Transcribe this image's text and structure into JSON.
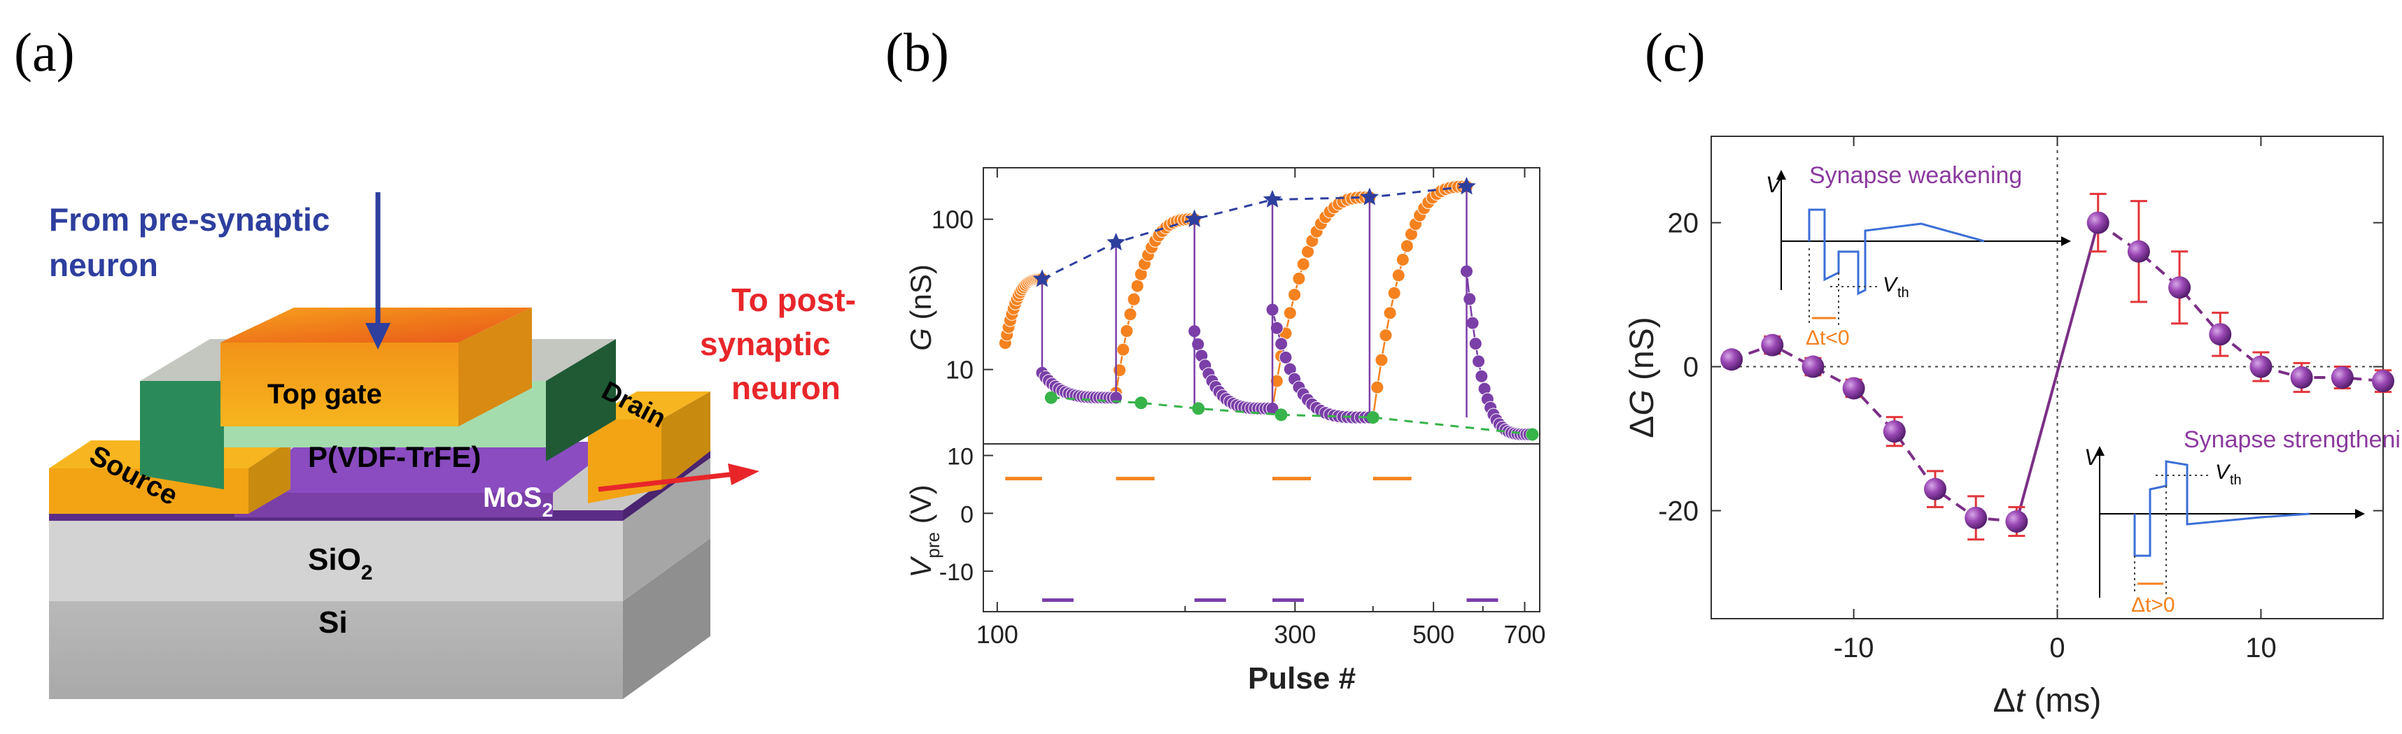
{
  "panels": {
    "a": "(a)",
    "b": "(b)",
    "c": "(c)"
  },
  "device": {
    "from_label_1": "From pre-synaptic",
    "from_label_2": "neuron",
    "to_label_1": "To post-",
    "to_label_2": "synaptic",
    "to_label_3": "neuron",
    "top_gate": "Top gate",
    "source": "Source",
    "drain": "Drain",
    "ferroelectric": "P(VDF-TrFE)",
    "channel": "MoS",
    "channel_sub": "2",
    "oxide": "SiO",
    "oxide_sub": "2",
    "substrate": "Si",
    "colors": {
      "arrow_in": "#2e3f9e",
      "arrow_out": "#e8262a",
      "gate": "#f59a1e",
      "mos2": "#7b3fa8"
    }
  },
  "chart_data": [
    {
      "type": "scatter",
      "panel": "b",
      "title": "",
      "xlabel": "Pulse #",
      "ylabel": "G (nS)",
      "ylabel_italic": "G",
      "ylabel_unit": " (nS)",
      "xscale": "log",
      "yscale": "log",
      "xlim": [
        95,
        740
      ],
      "ylim": [
        3.2,
        220
      ],
      "xticks": [
        100,
        300,
        500,
        700
      ],
      "xtick_labels": [
        "100",
        "300",
        "500",
        "700"
      ],
      "yticks": [
        10,
        100
      ],
      "ytick_labels": [
        "10",
        "100"
      ],
      "cycle_bounds": [
        [
          103,
          118
        ],
        [
          118,
          155
        ],
        [
          155,
          207
        ],
        [
          207,
          276
        ],
        [
          276,
          395
        ],
        [
          395,
          565
        ],
        [
          565,
          720
        ]
      ],
      "series": [
        {
          "name": "potentiation",
          "color": "#f5821f",
          "segments": [
            {
              "x0": 103,
              "x1": 118,
              "g0": 15,
              "g1": 40
            },
            {
              "x0": 155,
              "x1": 207,
              "g0": 7,
              "g1": 100
            },
            {
              "x0": 276,
              "x1": 395,
              "g0": 5.5,
              "g1": 140
            },
            {
              "x0": 400,
              "x1": 565,
              "g0": 4.8,
              "g1": 165
            }
          ]
        },
        {
          "name": "depression",
          "color": "#7b3fa8",
          "segments": [
            {
              "x0": 118,
              "x1": 155,
              "g0": 9.5,
              "g1": 6.5
            },
            {
              "x0": 207,
              "x1": 276,
              "g0": 18,
              "g1": 5.5
            },
            {
              "x0": 276,
              "x1": 395,
              "g0": 25,
              "g1": 4.8
            },
            {
              "x0": 565,
              "x1": 720,
              "g0": 45,
              "g1": 3.7
            }
          ]
        },
        {
          "name": "max envelope",
          "color": "#2e3f9e",
          "x": [
            118,
            155,
            207,
            276,
            395,
            565
          ],
          "y": [
            40,
            70,
            100,
            135,
            140,
            165
          ]
        },
        {
          "name": "min envelope",
          "color": "#37b34a",
          "x": [
            122,
            170,
            210,
            285,
            400,
            720
          ],
          "y": [
            6.5,
            6.0,
            5.5,
            5.0,
            4.8,
            3.7
          ]
        }
      ]
    },
    {
      "type": "line",
      "panel": "b-lower",
      "ylabel": "V",
      "ylabel_sub": "pre",
      "ylabel_unit": " (V)",
      "ylim": [
        -17,
        12
      ],
      "yticks": [
        10,
        0,
        -10
      ],
      "ytick_labels": [
        "10",
        "0",
        "-10"
      ],
      "series": [
        {
          "name": "positive pulses",
          "color": "#f5821f",
          "level": 6,
          "x_ranges": [
            [
              103,
              118
            ],
            [
              155,
              207
            ],
            [
              276,
              395
            ],
            [
              400,
              565
            ]
          ]
        },
        {
          "name": "negative pulses",
          "color": "#7b3fa8",
          "level": -15,
          "x_ranges": [
            [
              118,
              155
            ],
            [
              207,
              276
            ],
            [
              276,
              395
            ],
            [
              565,
              720
            ]
          ]
        }
      ]
    },
    {
      "type": "scatter",
      "panel": "c",
      "xlabel": "Δt (ms)",
      "xlabel_delta": "Δ",
      "xlabel_italic": "t",
      "xlabel_unit": " (ms)",
      "ylabel": "ΔG (nS)",
      "ylabel_delta": "Δ",
      "ylabel_italic": "G",
      "ylabel_unit": " (nS)",
      "xlim": [
        -17,
        16
      ],
      "ylim": [
        -35,
        32
      ],
      "xticks": [
        -10,
        0,
        10
      ],
      "xtick_labels": [
        "-10",
        "0",
        "10"
      ],
      "yticks": [
        20,
        0,
        -20
      ],
      "ytick_labels": [
        "20",
        "0",
        "-20"
      ],
      "series": [
        {
          "name": "negative Δt",
          "color": "#7b3fa8",
          "x": [
            -16,
            -14,
            -12,
            -10,
            -8,
            -6,
            -4,
            -2
          ],
          "y": [
            1,
            3,
            0,
            -3,
            -9,
            -17,
            -21,
            -21.5
          ],
          "err": [
            1,
            1.2,
            1.2,
            1.2,
            2,
            2.5,
            3,
            2
          ]
        },
        {
          "name": "positive Δt",
          "color": "#7b3fa8",
          "x": [
            2,
            4,
            6,
            8,
            10,
            12,
            14,
            16
          ],
          "y": [
            20,
            16,
            11,
            4.5,
            0,
            -1.5,
            -1.5,
            -2
          ],
          "err": [
            4,
            7,
            5,
            3,
            2,
            2,
            1.5,
            1.5
          ]
        }
      ],
      "annotations": {
        "weakening": "Synapse weakening",
        "strengthening": "Synapse strengthening",
        "v": "V",
        "vth": "V",
        "vth_sub": "th",
        "dt_neg": "Δt<0",
        "dt_pos": "Δt>0"
      }
    }
  ]
}
